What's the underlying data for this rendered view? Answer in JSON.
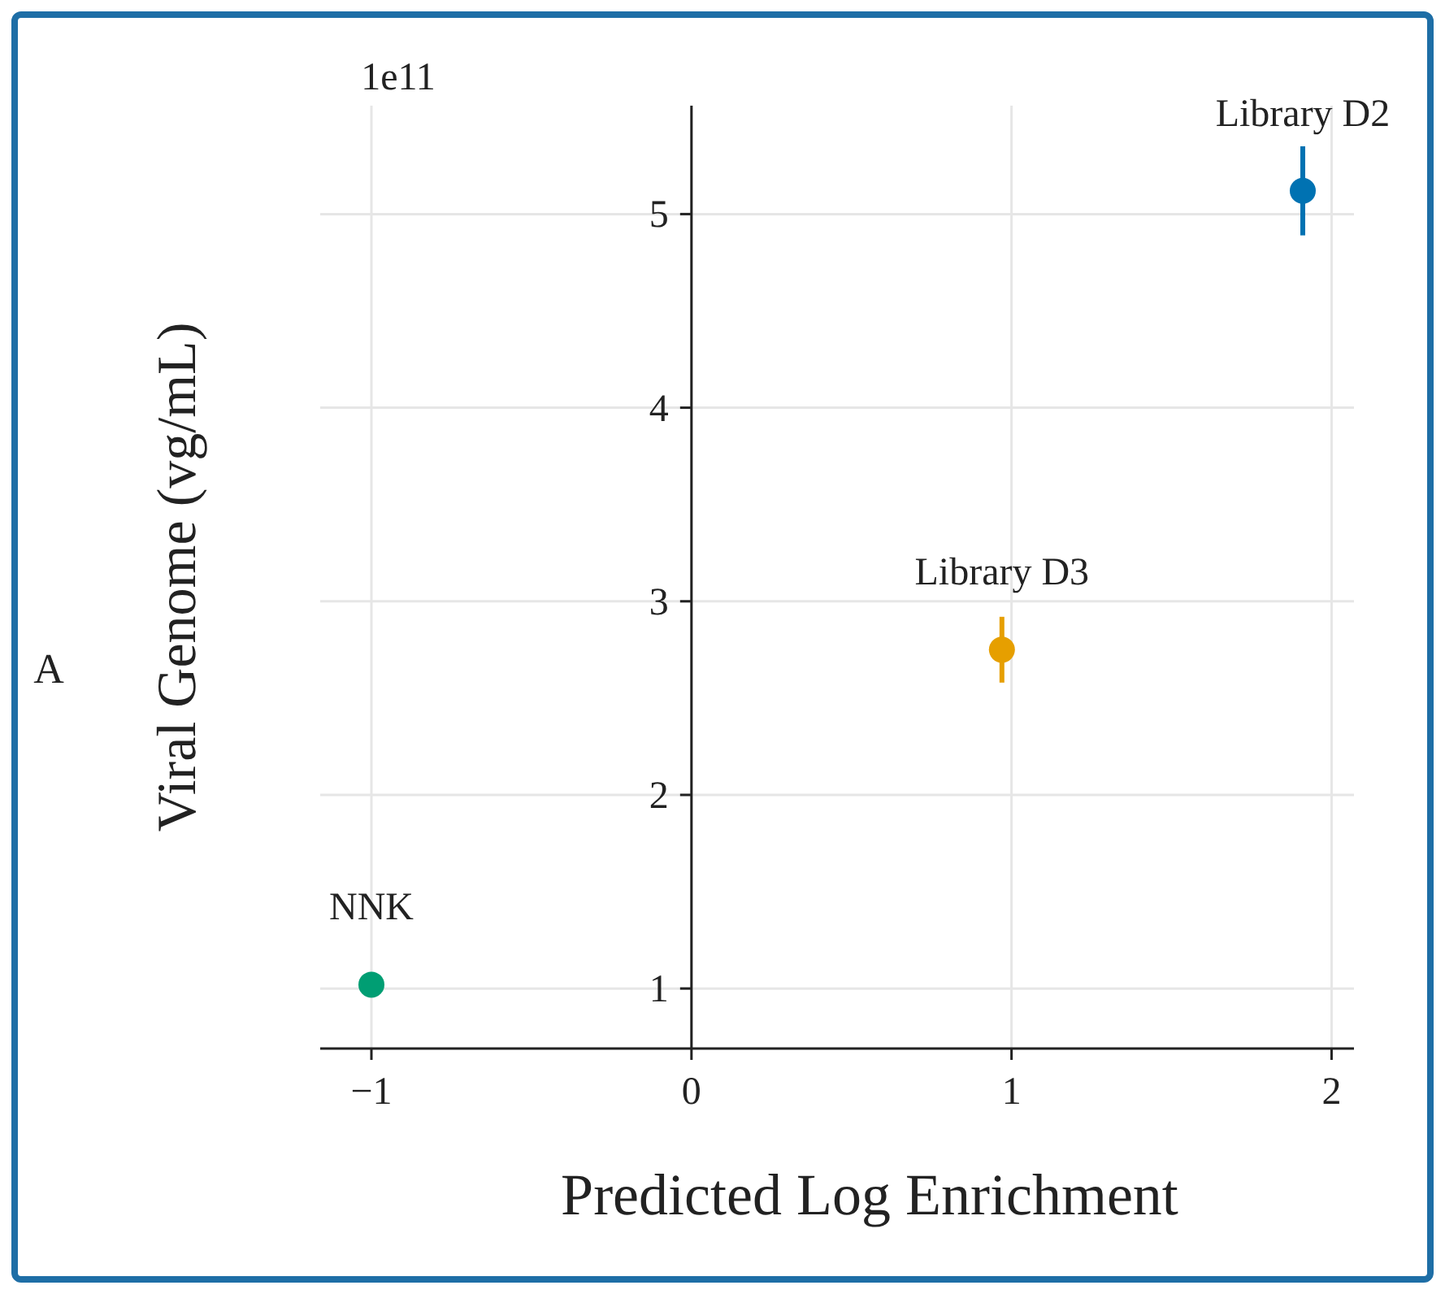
{
  "chart_data": {
    "type": "scatter",
    "xlabel": "Predicted Log Enrichment",
    "ylabel": "Viral Genome (vg/mL)",
    "xlim": [
      -1.16,
      2.07
    ],
    "xticks": [
      {
        "value": -1,
        "label": "−1"
      },
      0,
      1,
      2
    ],
    "ylim": [
      0.69,
      5.56
    ],
    "yticks": [
      1,
      2,
      3,
      4,
      5
    ],
    "grid": true,
    "marker": "circle",
    "annotations": [
      "1e11",
      "A"
    ],
    "series": [
      {
        "name": "NNK",
        "color": "#009e73",
        "x": [
          -1
        ],
        "values": [
          1.02
        ],
        "errors": [
          null
        ]
      },
      {
        "name": "Library D3",
        "color": "#e69f00",
        "x": [
          0.97
        ],
        "values": [
          2.75
        ],
        "errors": [
          0.17
        ]
      },
      {
        "name": "Library D2",
        "color": "#0072b2",
        "x": [
          1.91
        ],
        "values": [
          5.12
        ],
        "errors": [
          0.23
        ]
      }
    ]
  }
}
